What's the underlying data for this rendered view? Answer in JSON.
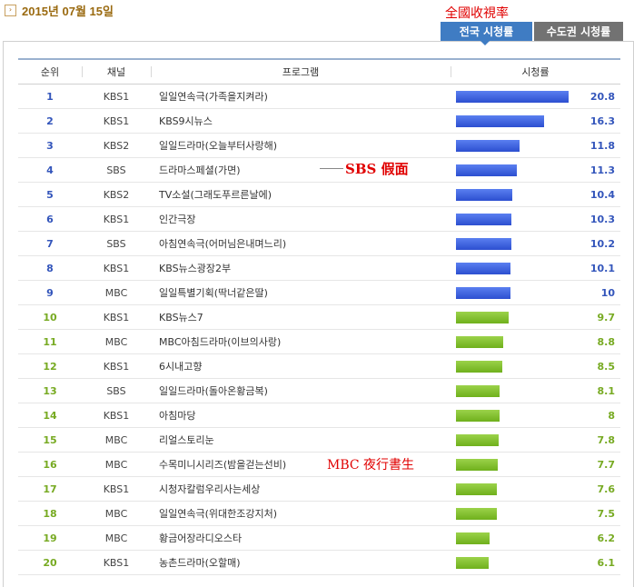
{
  "header": {
    "date": "2015년 07월 15일",
    "date_icon": "›"
  },
  "annotations": {
    "top": "全國收視率",
    "sbs": "SBS 假面",
    "mbc": "MBC 夜行書生"
  },
  "tabs": [
    {
      "label": "전국 시청률",
      "active": true
    },
    {
      "label": "수도권 시청률",
      "active": false
    }
  ],
  "columns": {
    "rank": "순위",
    "channel": "채널",
    "program": "프로그램",
    "rating": "시청률"
  },
  "colors": {
    "top_rank": "#3355bb",
    "other_rank": "#77aa22",
    "bar_blue": "#2c4fd0",
    "bar_green": "#6fb01c"
  },
  "rows": [
    {
      "rank": "1",
      "channel": "KBS1",
      "program": "일일연속극(가족을지켜라)",
      "rating": "20.8",
      "value": 20.8
    },
    {
      "rank": "2",
      "channel": "KBS1",
      "program": "KBS9시뉴스",
      "rating": "16.3",
      "value": 16.3
    },
    {
      "rank": "3",
      "channel": "KBS2",
      "program": "일일드라마(오늘부터사랑해)",
      "rating": "11.8",
      "value": 11.8
    },
    {
      "rank": "4",
      "channel": "SBS",
      "program": "드라마스페셜(가면)",
      "rating": "11.3",
      "value": 11.3
    },
    {
      "rank": "5",
      "channel": "KBS2",
      "program": "TV소설(그래도푸르른날에)",
      "rating": "10.4",
      "value": 10.4
    },
    {
      "rank": "6",
      "channel": "KBS1",
      "program": "인간극장",
      "rating": "10.3",
      "value": 10.3
    },
    {
      "rank": "7",
      "channel": "SBS",
      "program": "아침연속극(어머님은내며느리)",
      "rating": "10.2",
      "value": 10.2
    },
    {
      "rank": "8",
      "channel": "KBS1",
      "program": "KBS뉴스광장2부",
      "rating": "10.1",
      "value": 10.1
    },
    {
      "rank": "9",
      "channel": "MBC",
      "program": "일일특별기획(딱너같은딸)",
      "rating": "10",
      "value": 10
    },
    {
      "rank": "10",
      "channel": "KBS1",
      "program": "KBS뉴스7",
      "rating": "9.7",
      "value": 9.7
    },
    {
      "rank": "11",
      "channel": "MBC",
      "program": "MBC아침드라마(이브의사랑)",
      "rating": "8.8",
      "value": 8.8
    },
    {
      "rank": "12",
      "channel": "KBS1",
      "program": "6시내고향",
      "rating": "8.5",
      "value": 8.5
    },
    {
      "rank": "13",
      "channel": "SBS",
      "program": "일일드라마(돌아온황금복)",
      "rating": "8.1",
      "value": 8.1
    },
    {
      "rank": "14",
      "channel": "KBS1",
      "program": "아침마당",
      "rating": "8",
      "value": 8
    },
    {
      "rank": "15",
      "channel": "MBC",
      "program": "리얼스토리눈",
      "rating": "7.8",
      "value": 7.8
    },
    {
      "rank": "16",
      "channel": "MBC",
      "program": "수목미니시리즈(밤을걷는선비)",
      "rating": "7.7",
      "value": 7.7
    },
    {
      "rank": "17",
      "channel": "KBS1",
      "program": "시청자칼럼우리사는세상",
      "rating": "7.6",
      "value": 7.6
    },
    {
      "rank": "18",
      "channel": "MBC",
      "program": "일일연속극(위대한조강지처)",
      "rating": "7.5",
      "value": 7.5
    },
    {
      "rank": "19",
      "channel": "MBC",
      "program": "황금어장라디오스타",
      "rating": "6.2",
      "value": 6.2
    },
    {
      "rank": "20",
      "channel": "KBS1",
      "program": "농촌드라마(오할매)",
      "rating": "6.1",
      "value": 6.1
    }
  ]
}
